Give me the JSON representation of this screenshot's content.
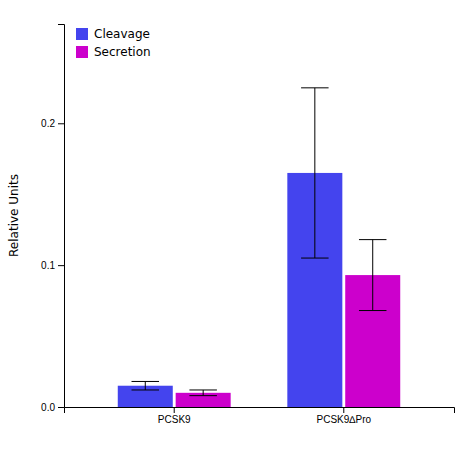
{
  "chart_data": {
    "type": "bar",
    "categories": [
      "PCSK9",
      "PCSK9∆Pro"
    ],
    "series": [
      {
        "name": "Cleavage",
        "color": "#4444ee",
        "values": [
          0.015,
          0.165
        ],
        "errors": [
          0.003,
          0.06
        ]
      },
      {
        "name": "Secretion",
        "color": "#cc00cc",
        "values": [
          0.01,
          0.093
        ],
        "errors": [
          0.002,
          0.025
        ]
      }
    ],
    "ylabel": "Relative Units",
    "ylim": [
      0,
      0.27
    ],
    "yticks": [
      {
        "value": 0.0,
        "label": "0.0"
      },
      0.1,
      0.2
    ],
    "legend": "upper left"
  }
}
